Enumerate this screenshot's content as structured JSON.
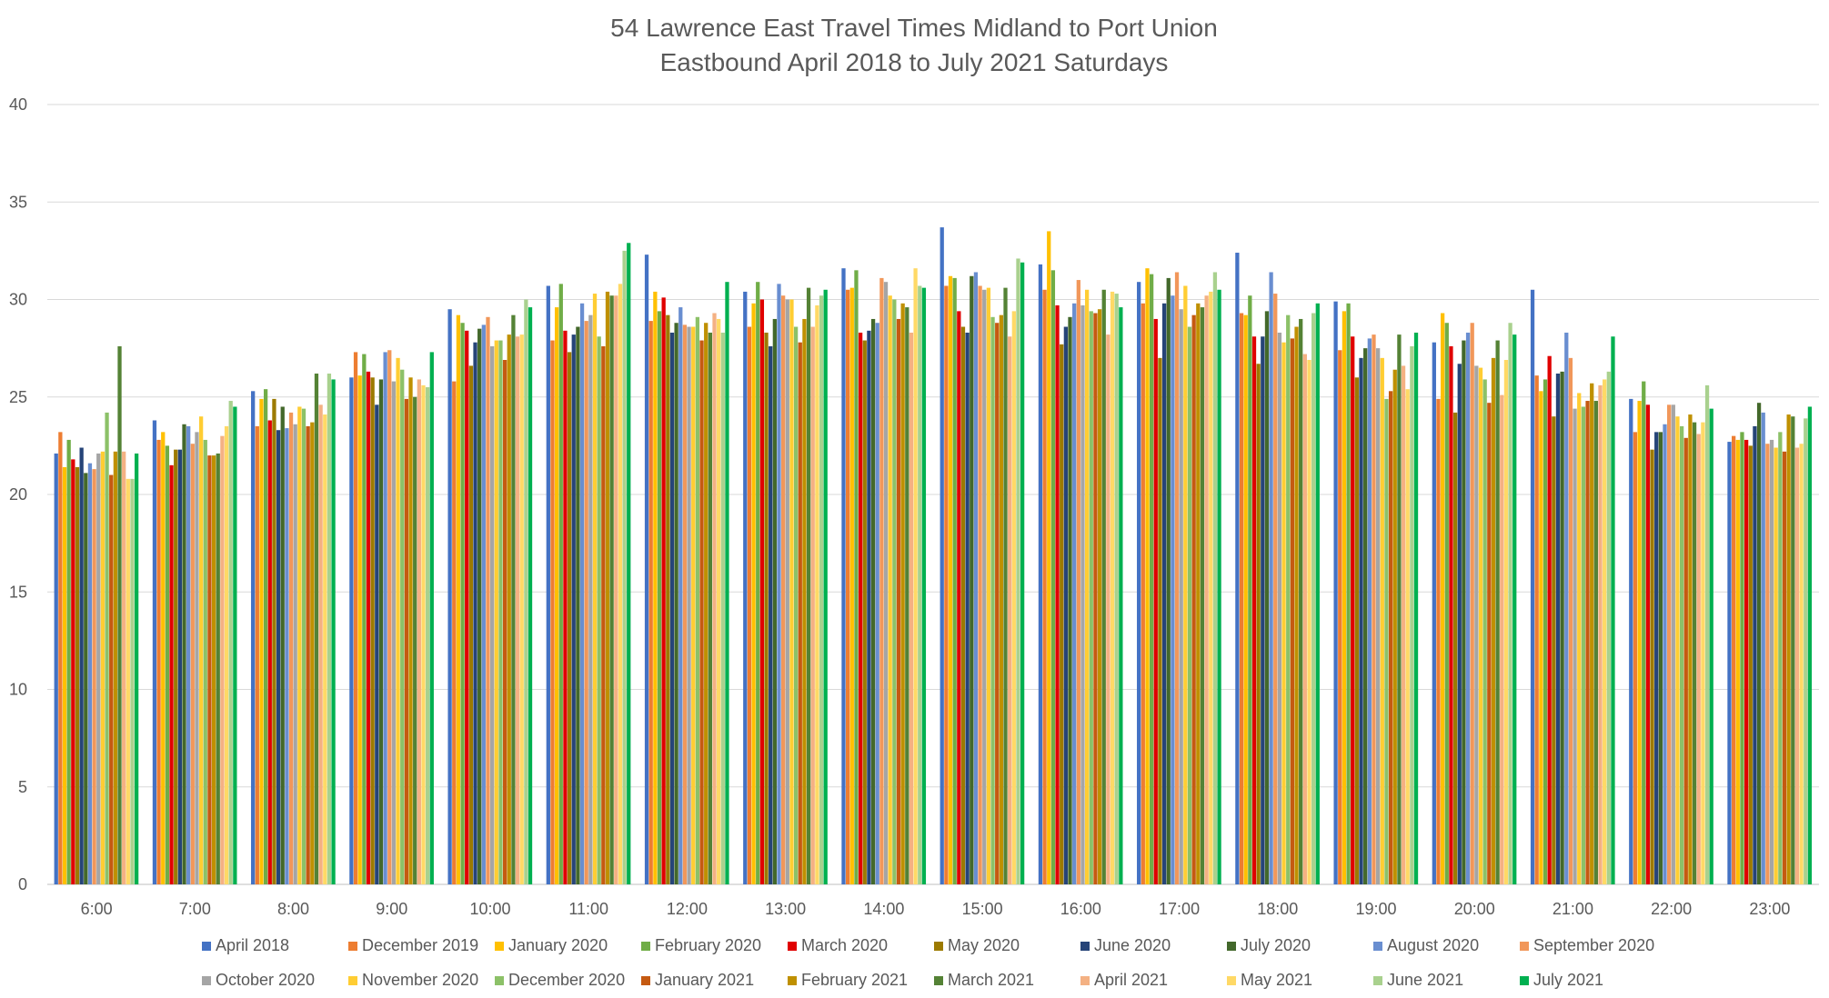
{
  "chart_data": {
    "type": "bar",
    "title": "54 Lawrence East Travel Times Midland to Port Union",
    "subtitle": "Eastbound April 2018 to July 2021 Saturdays",
    "xlabel": "",
    "ylabel": "",
    "ylim": [
      0,
      40
    ],
    "yticks": [
      "0",
      "5",
      "10",
      "15",
      "20",
      "25",
      "30",
      "35",
      "40"
    ],
    "grid": true,
    "legend_position": "bottom",
    "categories": [
      "6:00",
      "7:00",
      "8:00",
      "9:00",
      "10:00",
      "11:00",
      "12:00",
      "13:00",
      "14:00",
      "15:00",
      "16:00",
      "17:00",
      "18:00",
      "19:00",
      "20:00",
      "21:00",
      "22:00",
      "23:00"
    ],
    "series": [
      {
        "name": "April 2018",
        "color": "#4472C4",
        "values": [
          22.1,
          23.8,
          25.3,
          26.0,
          29.5,
          30.7,
          32.3,
          30.4,
          31.6,
          33.7,
          31.8,
          30.9,
          32.4,
          29.9,
          27.8,
          30.5,
          24.9,
          22.7
        ]
      },
      {
        "name": "December 2019",
        "color": "#ED7D31",
        "values": [
          23.2,
          22.8,
          23.5,
          27.3,
          25.8,
          27.9,
          28.9,
          28.6,
          30.5,
          30.7,
          30.5,
          29.8,
          29.3,
          27.4,
          24.9,
          26.1,
          23.2,
          23.0
        ]
      },
      {
        "name": "January 2020",
        "color": "#FFC000",
        "values": [
          21.4,
          23.2,
          24.9,
          26.1,
          29.2,
          29.6,
          30.4,
          29.8,
          30.6,
          31.2,
          33.5,
          31.6,
          29.2,
          29.4,
          29.3,
          25.3,
          24.8,
          22.8
        ]
      },
      {
        "name": "February 2020",
        "color": "#70AD47",
        "values": [
          22.8,
          22.5,
          25.4,
          27.2,
          28.8,
          30.8,
          29.4,
          30.9,
          31.5,
          31.1,
          31.5,
          31.3,
          30.2,
          29.8,
          28.8,
          25.9,
          25.8,
          23.2
        ]
      },
      {
        "name": "March 2020",
        "color": "#E00000",
        "values": [
          21.8,
          21.5,
          23.8,
          26.3,
          28.4,
          28.4,
          30.1,
          30.0,
          28.3,
          29.4,
          29.7,
          29.0,
          28.1,
          28.1,
          27.6,
          27.1,
          24.6,
          22.8
        ]
      },
      {
        "name": "May 2020",
        "color": "#9C7A00",
        "values": [
          21.4,
          22.3,
          24.9,
          26.0,
          26.6,
          27.3,
          29.2,
          28.3,
          27.9,
          28.6,
          27.7,
          27.0,
          26.7,
          26.0,
          24.2,
          24.0,
          22.3,
          22.5
        ]
      },
      {
        "name": "June 2020",
        "color": "#264478",
        "values": [
          22.4,
          22.3,
          23.3,
          24.6,
          27.8,
          28.2,
          28.3,
          27.6,
          28.4,
          28.3,
          28.6,
          29.8,
          28.1,
          27.0,
          26.7,
          26.2,
          23.2,
          23.5
        ]
      },
      {
        "name": "July 2020",
        "color": "#43682B",
        "values": [
          21.1,
          23.6,
          24.5,
          25.9,
          28.5,
          28.6,
          28.8,
          29.0,
          29.0,
          31.2,
          29.1,
          31.1,
          29.4,
          27.5,
          27.9,
          26.3,
          23.2,
          24.7
        ]
      },
      {
        "name": "August 2020",
        "color": "#698ED0",
        "values": [
          21.6,
          23.5,
          23.4,
          27.3,
          28.7,
          29.8,
          29.6,
          30.8,
          28.8,
          31.4,
          29.8,
          30.2,
          31.4,
          28.0,
          28.3,
          28.3,
          23.6,
          24.2
        ]
      },
      {
        "name": "September 2020",
        "color": "#F1975A",
        "values": [
          21.3,
          22.6,
          24.2,
          27.4,
          29.1,
          28.9,
          28.7,
          30.2,
          31.1,
          30.7,
          31.0,
          31.4,
          30.3,
          28.2,
          28.8,
          27.0,
          24.6,
          22.6
        ]
      },
      {
        "name": "October 2020",
        "color": "#A5A5A5",
        "values": [
          22.1,
          23.2,
          23.6,
          25.8,
          27.6,
          29.2,
          28.6,
          30.0,
          30.9,
          30.5,
          29.7,
          29.5,
          28.3,
          27.5,
          26.6,
          24.4,
          24.6,
          22.8
        ]
      },
      {
        "name": "November 2020",
        "color": "#FFCD33",
        "values": [
          22.2,
          24.0,
          24.5,
          27.0,
          27.9,
          30.3,
          28.6,
          30.0,
          30.2,
          30.6,
          30.5,
          30.7,
          27.8,
          27.0,
          26.5,
          25.2,
          24.0,
          22.4
        ]
      },
      {
        "name": "December 2020",
        "color": "#8CC168",
        "values": [
          24.2,
          22.8,
          24.4,
          26.4,
          27.9,
          28.1,
          29.1,
          28.6,
          30.0,
          29.1,
          29.4,
          28.6,
          29.2,
          24.9,
          25.9,
          24.5,
          23.5,
          23.2
        ]
      },
      {
        "name": "January 2021",
        "color": "#C55A11",
        "values": [
          21.0,
          22.0,
          23.5,
          24.9,
          26.9,
          27.6,
          27.9,
          27.8,
          29.0,
          28.8,
          29.3,
          29.2,
          28.0,
          25.3,
          24.7,
          24.8,
          22.9,
          22.2
        ]
      },
      {
        "name": "February 2021",
        "color": "#BF9000",
        "values": [
          22.2,
          22.0,
          23.7,
          26.0,
          28.2,
          30.4,
          28.8,
          29.0,
          29.8,
          29.2,
          29.5,
          29.8,
          28.6,
          26.4,
          27.0,
          25.7,
          24.1,
          24.1
        ]
      },
      {
        "name": "March 2021",
        "color": "#548235",
        "values": [
          27.6,
          22.1,
          26.2,
          25.0,
          29.2,
          30.2,
          28.3,
          30.6,
          29.6,
          30.6,
          30.5,
          29.6,
          29.0,
          28.2,
          27.9,
          24.8,
          23.7,
          24.0
        ]
      },
      {
        "name": "April 2021",
        "color": "#F4B183",
        "values": [
          22.2,
          23.0,
          24.6,
          25.9,
          28.1,
          30.2,
          29.3,
          28.6,
          28.3,
          28.1,
          28.2,
          30.2,
          27.2,
          26.6,
          25.1,
          25.6,
          23.1,
          22.4
        ]
      },
      {
        "name": "May 2021",
        "color": "#FFD966",
        "values": [
          20.8,
          23.5,
          24.1,
          25.6,
          28.2,
          30.8,
          29.0,
          29.7,
          31.6,
          29.4,
          30.4,
          30.4,
          26.9,
          25.4,
          26.9,
          25.9,
          23.7,
          22.6
        ]
      },
      {
        "name": "June 2021",
        "color": "#A9D18E",
        "values": [
          20.8,
          24.8,
          26.2,
          25.5,
          30.0,
          32.5,
          28.3,
          30.2,
          30.7,
          32.1,
          30.3,
          31.4,
          29.3,
          27.6,
          28.8,
          26.3,
          25.6,
          23.9
        ]
      },
      {
        "name": "July 2021",
        "color": "#00B050",
        "values": [
          22.1,
          24.5,
          25.9,
          27.3,
          29.6,
          32.9,
          30.9,
          30.5,
          30.6,
          31.9,
          29.6,
          30.5,
          29.8,
          28.3,
          28.2,
          28.1,
          24.4,
          24.5
        ]
      }
    ]
  }
}
